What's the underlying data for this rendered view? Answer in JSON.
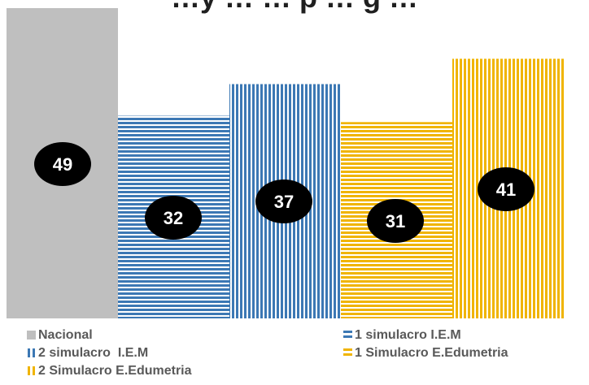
{
  "chart_data": {
    "type": "bar",
    "title": "…y … … p … g …",
    "categories": [
      "Nacional",
      "1 simulacro I.E.M",
      "2 simulacro  I.E.M",
      "1 Simulacro E.Edumetria",
      "2 Simulacro E.Edumetria"
    ],
    "values": [
      49,
      32,
      37,
      31,
      41
    ],
    "ylim": [
      0,
      49
    ],
    "grid": false,
    "legend_placement": "bottom",
    "series": [
      {
        "name": "Nacional",
        "value": 49,
        "color": "#bfbfbf",
        "pattern": "solid"
      },
      {
        "name": "1 simulacro I.E.M",
        "value": 32,
        "color": "#3c78b4",
        "pattern": "horizontal-stripes"
      },
      {
        "name": "2 simulacro  I.E.M",
        "value": 37,
        "color": "#3c78b4",
        "pattern": "vertical-stripes"
      },
      {
        "name": "1 Simulacro E.Edumetria",
        "value": 31,
        "color": "#f0b400",
        "pattern": "horizontal-stripes"
      },
      {
        "name": "2 Simulacro E.Edumetria",
        "value": 41,
        "color": "#f0b400",
        "pattern": "vertical-stripes"
      }
    ],
    "data_label_style": {
      "bg": "#000000",
      "fg": "#ffffff"
    }
  }
}
